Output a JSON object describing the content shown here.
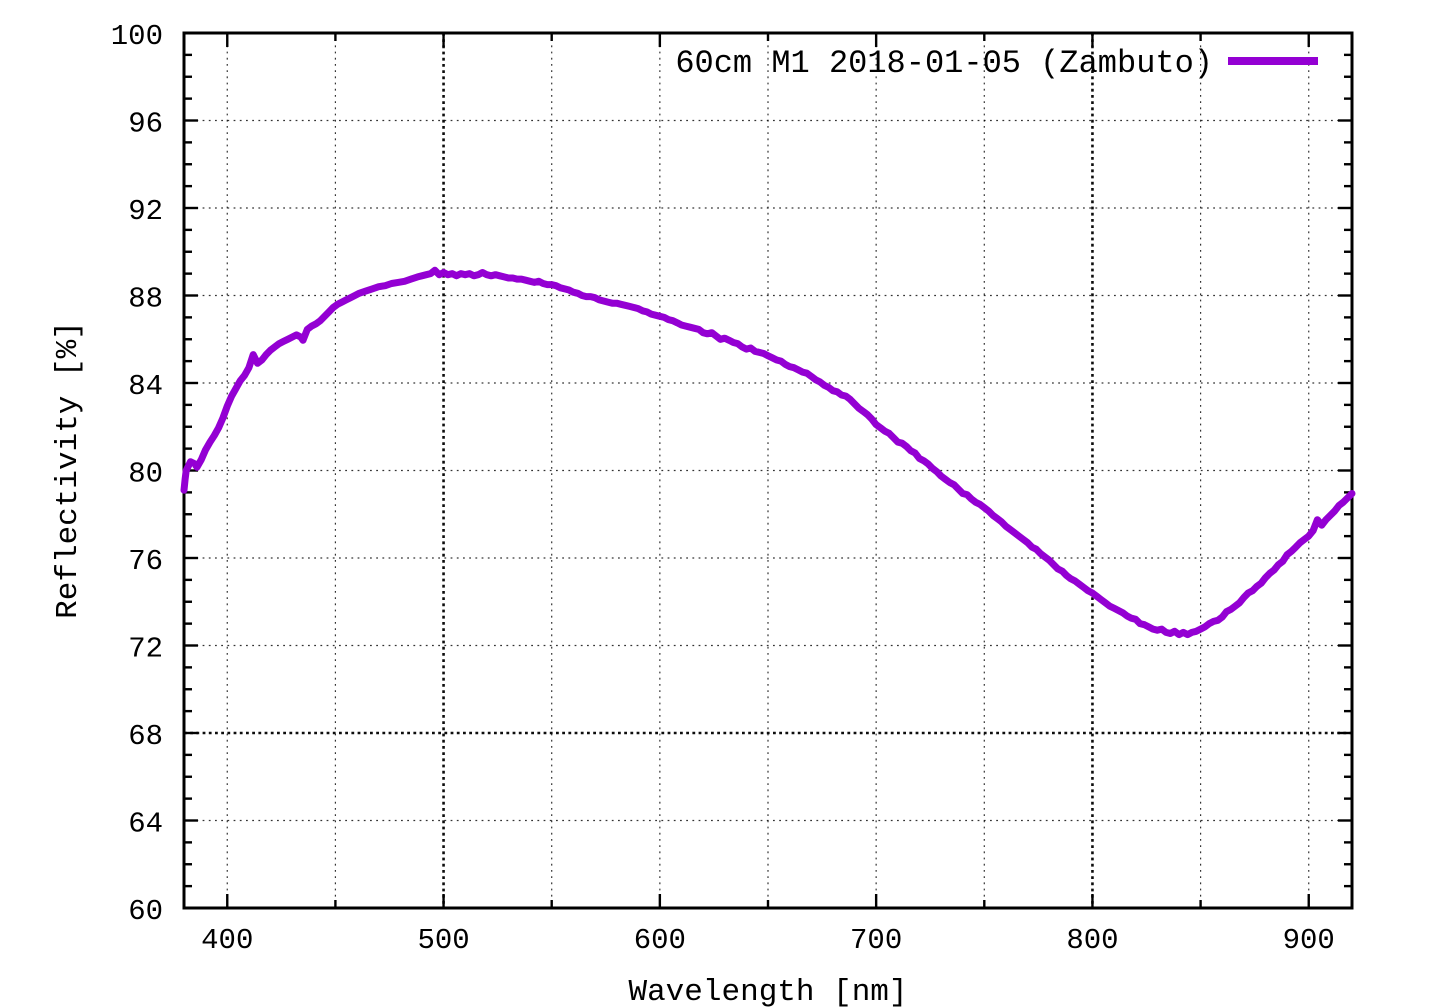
{
  "chart_data": {
    "type": "line",
    "title": "",
    "xlabel": "Wavelength [nm]",
    "ylabel": "Reflectivity [%]",
    "xlim": [
      380,
      920
    ],
    "ylim": [
      60,
      100
    ],
    "x_major_ticks": [
      400,
      500,
      600,
      700,
      800,
      900
    ],
    "x_minor_tick_step": 50,
    "y_major_ticks": [
      60,
      64,
      68,
      72,
      76,
      80,
      84,
      88,
      92,
      96,
      100
    ],
    "y_minor_tick_step": 1,
    "grid": {
      "x_lines": [
        400,
        450,
        500,
        550,
        600,
        650,
        700,
        750,
        800,
        850,
        900
      ],
      "x_bold": [
        500,
        800
      ],
      "y_lines": [
        64,
        68,
        72,
        76,
        80,
        84,
        88,
        92,
        96
      ],
      "y_bold": [
        68
      ],
      "style": "dotted"
    },
    "legend": {
      "label": "60cm M1 2018-01-05 (Zambuto)",
      "position": "top-right"
    },
    "series": [
      {
        "name": "60cm M1 2018-01-05 (Zambuto)",
        "color": "#9400d3",
        "points": [
          [
            380,
            79.1
          ],
          [
            380.5,
            79.6
          ],
          [
            381,
            80.0
          ],
          [
            383,
            80.4
          ],
          [
            385,
            80.3
          ],
          [
            386,
            80.15
          ],
          [
            388,
            80.5
          ],
          [
            390,
            80.95
          ],
          [
            392,
            81.3
          ],
          [
            394,
            81.6
          ],
          [
            396,
            81.95
          ],
          [
            398,
            82.4
          ],
          [
            400,
            82.95
          ],
          [
            402,
            83.4
          ],
          [
            404,
            83.75
          ],
          [
            406,
            84.1
          ],
          [
            408,
            84.35
          ],
          [
            410,
            84.7
          ],
          [
            412,
            85.3
          ],
          [
            414,
            84.9
          ],
          [
            416,
            85.05
          ],
          [
            418,
            85.3
          ],
          [
            420,
            85.5
          ],
          [
            422,
            85.65
          ],
          [
            424,
            85.8
          ],
          [
            426,
            85.9
          ],
          [
            428,
            86.0
          ],
          [
            430,
            86.1
          ],
          [
            432,
            86.2
          ],
          [
            434,
            86.1
          ],
          [
            435,
            85.95
          ],
          [
            437,
            86.45
          ],
          [
            439,
            86.6
          ],
          [
            441,
            86.7
          ],
          [
            443,
            86.85
          ],
          [
            445,
            87.05
          ],
          [
            447,
            87.25
          ],
          [
            449,
            87.45
          ],
          [
            451,
            87.6
          ],
          [
            453,
            87.7
          ],
          [
            455,
            87.8
          ],
          [
            457,
            87.9
          ],
          [
            459,
            88.0
          ],
          [
            461,
            88.1
          ],
          [
            464,
            88.2
          ],
          [
            467,
            88.3
          ],
          [
            470,
            88.4
          ],
          [
            473,
            88.45
          ],
          [
            476,
            88.55
          ],
          [
            479,
            88.6
          ],
          [
            482,
            88.65
          ],
          [
            485,
            88.75
          ],
          [
            488,
            88.85
          ],
          [
            490,
            88.9
          ],
          [
            492,
            88.95
          ],
          [
            494,
            89.0
          ],
          [
            496,
            89.15
          ],
          [
            498,
            88.95
          ],
          [
            500,
            89.05
          ],
          [
            502,
            88.95
          ],
          [
            504,
            89.0
          ],
          [
            506,
            88.9
          ],
          [
            508,
            89.0
          ],
          [
            510,
            88.95
          ],
          [
            512,
            89.0
          ],
          [
            514,
            88.9
          ],
          [
            516,
            88.95
          ],
          [
            518,
            89.05
          ],
          [
            520,
            88.95
          ],
          [
            522,
            88.9
          ],
          [
            524,
            88.95
          ],
          [
            526,
            88.9
          ],
          [
            528,
            88.85
          ],
          [
            530,
            88.8
          ],
          [
            532,
            88.8
          ],
          [
            534,
            88.75
          ],
          [
            536,
            88.75
          ],
          [
            538,
            88.7
          ],
          [
            540,
            88.65
          ],
          [
            542,
            88.6
          ],
          [
            544,
            88.65
          ],
          [
            546,
            88.55
          ],
          [
            548,
            88.5
          ],
          [
            550,
            88.5
          ],
          [
            552,
            88.45
          ],
          [
            554,
            88.35
          ],
          [
            556,
            88.3
          ],
          [
            558,
            88.25
          ],
          [
            560,
            88.15
          ],
          [
            562,
            88.1
          ],
          [
            564,
            88.0
          ],
          [
            566,
            87.95
          ],
          [
            568,
            87.95
          ],
          [
            570,
            87.9
          ],
          [
            572,
            87.8
          ],
          [
            574,
            87.75
          ],
          [
            576,
            87.7
          ],
          [
            578,
            87.65
          ],
          [
            580,
            87.65
          ],
          [
            582,
            87.6
          ],
          [
            584,
            87.55
          ],
          [
            586,
            87.5
          ],
          [
            588,
            87.45
          ],
          [
            590,
            87.4
          ],
          [
            592,
            87.3
          ],
          [
            594,
            87.25
          ],
          [
            596,
            87.15
          ],
          [
            598,
            87.1
          ],
          [
            600,
            87.05
          ],
          [
            602,
            87.0
          ],
          [
            604,
            86.9
          ],
          [
            606,
            86.85
          ],
          [
            608,
            86.75
          ],
          [
            610,
            86.65
          ],
          [
            612,
            86.6
          ],
          [
            614,
            86.55
          ],
          [
            616,
            86.5
          ],
          [
            618,
            86.45
          ],
          [
            620,
            86.3
          ],
          [
            622,
            86.25
          ],
          [
            624,
            86.3
          ],
          [
            626,
            86.15
          ],
          [
            628,
            86.0
          ],
          [
            630,
            86.05
          ],
          [
            632,
            85.95
          ],
          [
            634,
            85.85
          ],
          [
            636,
            85.8
          ],
          [
            638,
            85.65
          ],
          [
            640,
            85.55
          ],
          [
            642,
            85.6
          ],
          [
            644,
            85.45
          ],
          [
            646,
            85.4
          ],
          [
            648,
            85.35
          ],
          [
            650,
            85.25
          ],
          [
            652,
            85.15
          ],
          [
            654,
            85.05
          ],
          [
            656,
            85.0
          ],
          [
            658,
            84.85
          ],
          [
            660,
            84.75
          ],
          [
            662,
            84.7
          ],
          [
            664,
            84.6
          ],
          [
            666,
            84.5
          ],
          [
            668,
            84.45
          ],
          [
            670,
            84.3
          ],
          [
            672,
            84.15
          ],
          [
            674,
            84.05
          ],
          [
            676,
            83.9
          ],
          [
            678,
            83.8
          ],
          [
            680,
            83.65
          ],
          [
            682,
            83.6
          ],
          [
            684,
            83.45
          ],
          [
            686,
            83.4
          ],
          [
            688,
            83.25
          ],
          [
            690,
            83.05
          ],
          [
            692,
            82.85
          ],
          [
            694,
            82.7
          ],
          [
            696,
            82.55
          ],
          [
            698,
            82.35
          ],
          [
            700,
            82.1
          ],
          [
            702,
            81.95
          ],
          [
            704,
            81.8
          ],
          [
            706,
            81.7
          ],
          [
            708,
            81.5
          ],
          [
            710,
            81.3
          ],
          [
            712,
            81.25
          ],
          [
            714,
            81.1
          ],
          [
            716,
            80.9
          ],
          [
            718,
            80.8
          ],
          [
            720,
            80.55
          ],
          [
            722,
            80.45
          ],
          [
            724,
            80.3
          ],
          [
            726,
            80.1
          ],
          [
            728,
            79.95
          ],
          [
            730,
            79.75
          ],
          [
            732,
            79.6
          ],
          [
            734,
            79.45
          ],
          [
            736,
            79.35
          ],
          [
            738,
            79.15
          ],
          [
            740,
            78.95
          ],
          [
            742,
            78.9
          ],
          [
            744,
            78.7
          ],
          [
            746,
            78.55
          ],
          [
            748,
            78.45
          ],
          [
            750,
            78.3
          ],
          [
            752,
            78.15
          ],
          [
            754,
            77.95
          ],
          [
            756,
            77.8
          ],
          [
            758,
            77.65
          ],
          [
            760,
            77.45
          ],
          [
            762,
            77.3
          ],
          [
            764,
            77.15
          ],
          [
            766,
            77.0
          ],
          [
            768,
            76.85
          ],
          [
            770,
            76.7
          ],
          [
            772,
            76.5
          ],
          [
            774,
            76.4
          ],
          [
            776,
            76.2
          ],
          [
            778,
            76.05
          ],
          [
            780,
            75.9
          ],
          [
            782,
            75.7
          ],
          [
            784,
            75.5
          ],
          [
            786,
            75.4
          ],
          [
            788,
            75.2
          ],
          [
            790,
            75.05
          ],
          [
            792,
            74.95
          ],
          [
            794,
            74.8
          ],
          [
            796,
            74.65
          ],
          [
            798,
            74.5
          ],
          [
            800,
            74.4
          ],
          [
            802,
            74.25
          ],
          [
            804,
            74.1
          ],
          [
            806,
            73.95
          ],
          [
            808,
            73.8
          ],
          [
            810,
            73.7
          ],
          [
            812,
            73.6
          ],
          [
            814,
            73.5
          ],
          [
            816,
            73.35
          ],
          [
            818,
            73.25
          ],
          [
            820,
            73.2
          ],
          [
            822,
            73.0
          ],
          [
            824,
            72.95
          ],
          [
            826,
            72.85
          ],
          [
            828,
            72.75
          ],
          [
            830,
            72.7
          ],
          [
            832,
            72.75
          ],
          [
            834,
            72.6
          ],
          [
            836,
            72.55
          ],
          [
            838,
            72.65
          ],
          [
            840,
            72.5
          ],
          [
            842,
            72.6
          ],
          [
            844,
            72.5
          ],
          [
            846,
            72.6
          ],
          [
            848,
            72.65
          ],
          [
            850,
            72.75
          ],
          [
            852,
            72.85
          ],
          [
            854,
            73.0
          ],
          [
            856,
            73.1
          ],
          [
            858,
            73.15
          ],
          [
            860,
            73.3
          ],
          [
            862,
            73.55
          ],
          [
            864,
            73.65
          ],
          [
            866,
            73.8
          ],
          [
            868,
            73.95
          ],
          [
            870,
            74.2
          ],
          [
            872,
            74.4
          ],
          [
            874,
            74.5
          ],
          [
            876,
            74.7
          ],
          [
            878,
            74.85
          ],
          [
            880,
            75.1
          ],
          [
            882,
            75.3
          ],
          [
            884,
            75.45
          ],
          [
            886,
            75.7
          ],
          [
            888,
            75.85
          ],
          [
            890,
            76.15
          ],
          [
            892,
            76.3
          ],
          [
            894,
            76.5
          ],
          [
            896,
            76.7
          ],
          [
            898,
            76.85
          ],
          [
            900,
            77.0
          ],
          [
            902,
            77.25
          ],
          [
            904,
            77.75
          ],
          [
            906,
            77.5
          ],
          [
            908,
            77.75
          ],
          [
            910,
            77.95
          ],
          [
            912,
            78.15
          ],
          [
            914,
            78.4
          ],
          [
            916,
            78.55
          ],
          [
            918,
            78.75
          ],
          [
            920,
            78.95
          ]
        ]
      }
    ]
  }
}
